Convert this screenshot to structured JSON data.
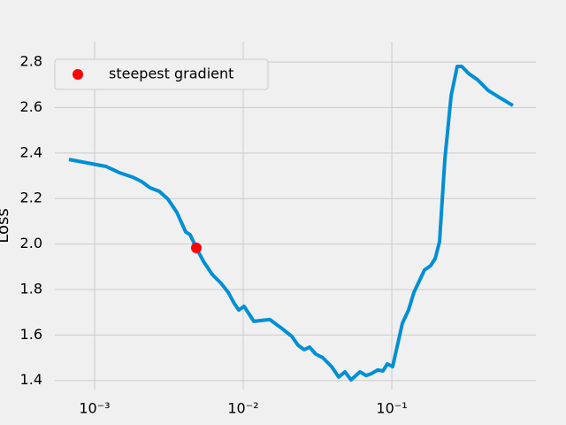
{
  "chart_data": {
    "type": "line",
    "ylabel": "Loss",
    "log_x": true,
    "grid": true,
    "legend": "upper left",
    "color": "#008fd5",
    "x": [
      0.000672,
      0.001195,
      0.001468,
      0.001803,
      0.002068,
      0.002371,
      0.00272,
      0.003119,
      0.003577,
      0.004103,
      0.004395,
      0.004836,
      0.0054,
      0.00619,
      0.0071,
      0.007925,
      0.008718,
      0.009336,
      0.01014,
      0.01179,
      0.01509,
      0.01853,
      0.02125,
      0.02339,
      0.02574,
      0.02794,
      0.03076,
      0.03434,
      0.03938,
      0.04395,
      0.04836,
      0.05324,
      0.06105,
      0.06719,
      0.07297,
      0.08035,
      0.08718,
      0.09336,
      0.1014,
      0.1179,
      0.1297,
      0.1409,
      0.166,
      0.1828,
      0.1959,
      0.2096,
      0.2276,
      0.2506,
      0.2757,
      0.2954,
      0.3298,
      0.3781,
      0.4457,
      0.5323,
      0.6531
    ],
    "values": [
      2.372,
      2.341,
      2.314,
      2.294,
      2.275,
      2.247,
      2.232,
      2.197,
      2.139,
      2.053,
      2.041,
      1.983,
      1.924,
      1.866,
      1.827,
      1.788,
      1.738,
      1.71,
      1.726,
      1.66,
      1.668,
      1.625,
      1.594,
      1.555,
      1.535,
      1.547,
      1.516,
      1.5,
      1.461,
      1.415,
      1.438,
      1.403,
      1.438,
      1.422,
      1.43,
      1.446,
      1.442,
      1.473,
      1.461,
      1.652,
      1.71,
      1.788,
      1.886,
      1.905,
      1.936,
      2.01,
      2.372,
      2.652,
      2.781,
      2.781,
      2.749,
      2.722,
      2.675,
      2.644,
      2.609
    ],
    "marker": {
      "name": "steepest gradient",
      "color": "#ff0000",
      "x": 0.004836,
      "y": 1.983
    },
    "xlim": [
      0.00054,
      0.933
    ],
    "ylim": [
      1.36,
      2.89
    ],
    "xticks": [
      {
        "value": 0.001,
        "label": "10⁻³"
      },
      {
        "value": 0.01,
        "label": "10⁻²"
      },
      {
        "value": 0.1,
        "label": "10⁻¹"
      }
    ],
    "yticks": [
      {
        "value": 1.4,
        "label": "1.4"
      },
      {
        "value": 1.6,
        "label": "1.6"
      },
      {
        "value": 1.8,
        "label": "1.8"
      },
      {
        "value": 2.0,
        "label": "2.0"
      },
      {
        "value": 2.2,
        "label": "2.2"
      },
      {
        "value": 2.4,
        "label": "2.4"
      },
      {
        "value": 2.6,
        "label": "2.6"
      },
      {
        "value": 2.8,
        "label": "2.8"
      }
    ]
  }
}
